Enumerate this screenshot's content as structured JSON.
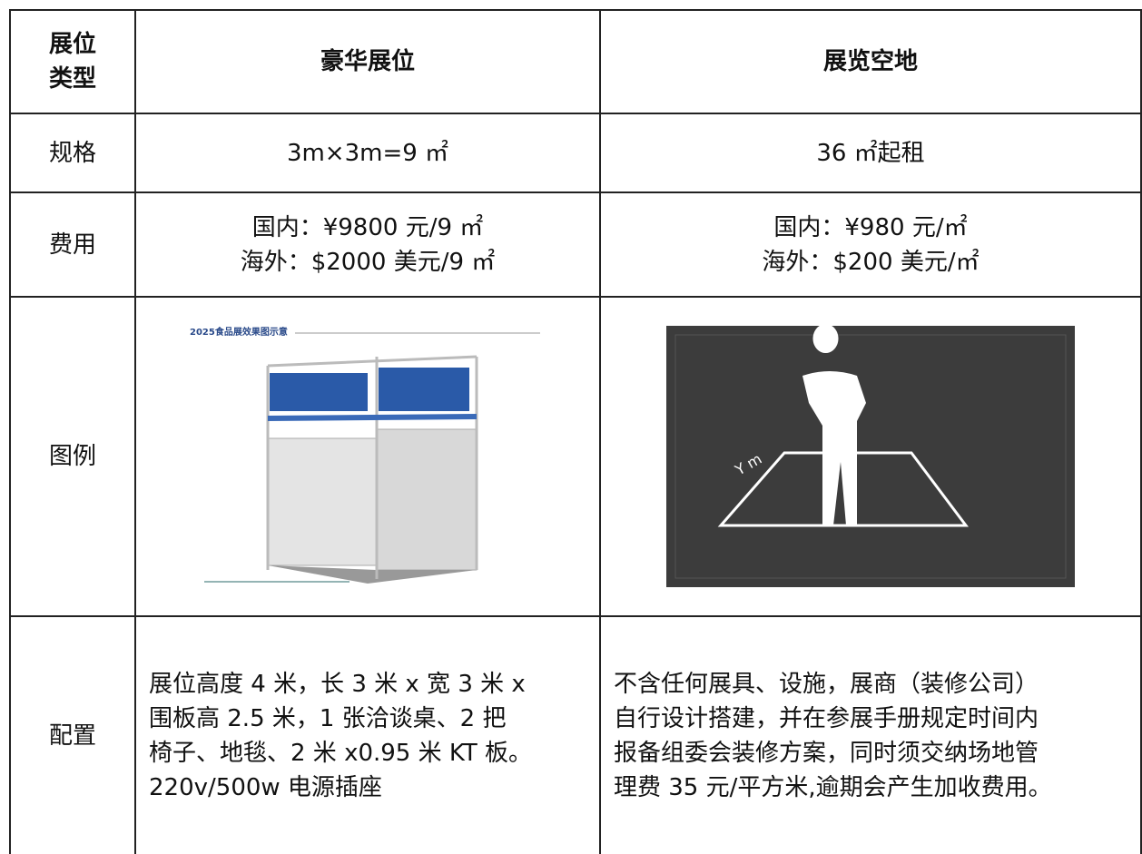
{
  "table": {
    "header": {
      "label": [
        "展位",
        "类型"
      ],
      "cells": [
        "豪华展位",
        "展览空地"
      ]
    },
    "rows": [
      {
        "label": "规格",
        "cells": [
          [
            "3m×3m=9 ㎡"
          ],
          [
            "36 ㎡起租"
          ]
        ]
      },
      {
        "label": "费用",
        "cells": [
          [
            "国内：¥9800 元/9 ㎡",
            "海外：$2000 美元/9 ㎡"
          ],
          [
            "国内：¥980 元/㎡",
            "海外：$200 美元/㎡"
          ]
        ]
      },
      {
        "label": "图例",
        "cells": [
          [
            "2025食品展效果图示意"
          ],
          [
            "Y m"
          ]
        ]
      },
      {
        "label": "配置",
        "cells": [
          [
            "展位高度 4 米，长 3 米 x 宽 3 米 x",
            "围板高 2.5 米，1 张洽谈桌、2 把",
            "椅子、地毯、2 米 x0.95 米 KT 板。",
            "220v/500w 电源插座"
          ],
          [
            "不含任何展具、设施，展商（装修公司）",
            "自行设计搭建，并在参展手册规定时间内",
            "报备组委会装修方案，同时须交纳场地管",
            "理费 35 元/平方米,逾期会产生加收费用。"
          ]
        ]
      }
    ]
  }
}
